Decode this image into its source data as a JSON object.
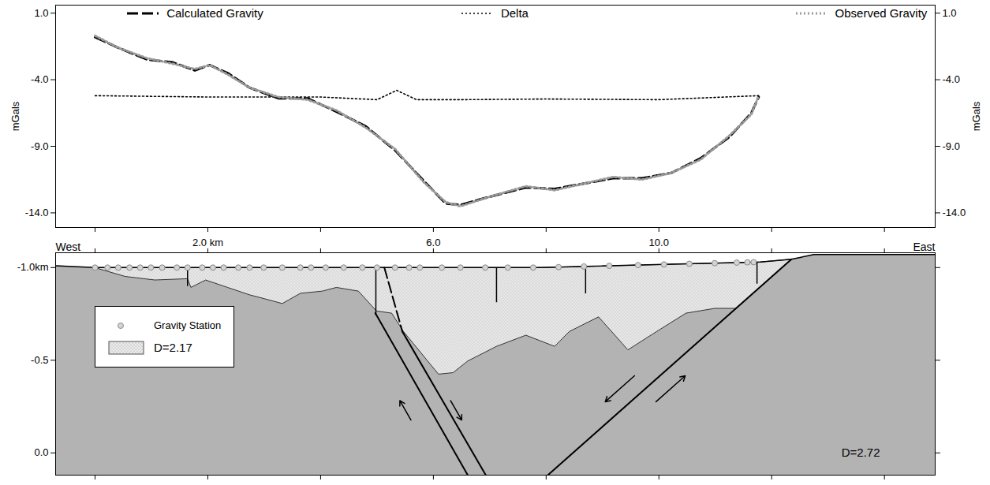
{
  "chart_data": [
    {
      "type": "line",
      "ylabel": "mGals",
      "xlim": [
        -0.7,
        14.9
      ],
      "ylim": [
        -15.1,
        1.6
      ],
      "xticks": [
        0,
        2,
        4,
        6,
        8,
        10,
        12,
        14
      ],
      "yticks": [
        {
          "value": 1,
          "label": "1.0"
        },
        {
          "value": -4,
          "label": "-4.0"
        },
        {
          "value": -9,
          "label": "-9.0"
        },
        {
          "value": -14,
          "label": "-14.0"
        }
      ],
      "tick_labels": "y",
      "legend": "top",
      "series": [
        {
          "name": "Calculated Gravity",
          "color": "#000000",
          "line_style": "dashed",
          "x": [
            0,
            0.41,
            0.93,
            1.38,
            1.77,
            2.03,
            2.35,
            2.74,
            3.25,
            3.77,
            4.28,
            4.8,
            5.32,
            5.83,
            6.22,
            6.48,
            6.99,
            7.64,
            8.15,
            8.67,
            9.19,
            9.7,
            10.22,
            10.74,
            11.25,
            11.64,
            11.77
          ],
          "values": [
            -0.8,
            -1.6,
            -2.5,
            -2.7,
            -3.3,
            -2.9,
            -3.5,
            -4.6,
            -5.4,
            -5.4,
            -6.4,
            -7.5,
            -9.3,
            -11.6,
            -13.3,
            -13.4,
            -12.8,
            -12.1,
            -12.2,
            -11.8,
            -11.4,
            -11.4,
            -11.0,
            -9.9,
            -8.3,
            -6.5,
            -5.3
          ]
        },
        {
          "name": "Delta",
          "color": "#000000",
          "line_style": "dotted",
          "x": [
            0,
            2,
            4,
            5.0,
            5.35,
            5.7,
            6.5,
            8,
            10,
            11.77
          ],
          "values": [
            -5.2,
            -5.3,
            -5.3,
            -5.5,
            -4.8,
            -5.5,
            -5.5,
            -5.45,
            -5.5,
            -5.2
          ]
        },
        {
          "name": "Observed Gravity",
          "color": "#9a9a9a",
          "line_style": "dotted",
          "x": [
            0,
            0.41,
            0.93,
            1.38,
            1.77,
            2.03,
            2.35,
            2.74,
            3.25,
            3.77,
            4.28,
            4.8,
            5.32,
            5.83,
            6.22,
            6.48,
            6.99,
            7.64,
            8.15,
            8.67,
            9.19,
            9.7,
            10.22,
            10.74,
            11.25,
            11.64,
            11.77
          ],
          "values": [
            -0.7,
            -1.6,
            -2.4,
            -2.8,
            -3.2,
            -2.9,
            -3.6,
            -4.6,
            -5.3,
            -5.5,
            -6.3,
            -7.6,
            -9.2,
            -11.7,
            -13.2,
            -13.5,
            -12.8,
            -12.0,
            -12.3,
            -11.8,
            -11.3,
            -11.5,
            -11.0,
            -10.0,
            -8.2,
            -6.6,
            -5.2
          ]
        }
      ]
    },
    {
      "type": "cross_section",
      "xlim": [
        -0.7,
        14.9
      ],
      "ylim": [
        -1.08,
        0.12
      ],
      "xticks": [
        {
          "value": 0,
          "label": null
        },
        {
          "value": 2,
          "label": "2.0 km"
        },
        {
          "value": 4,
          "label": null
        },
        {
          "value": 6,
          "label": "6.0"
        },
        {
          "value": 8,
          "label": null
        },
        {
          "value": 10,
          "label": "10.0"
        },
        {
          "value": 12,
          "label": null
        },
        {
          "value": 14,
          "label": null
        }
      ],
      "yticks": [
        {
          "value": -1.0,
          "label": "-1.0km"
        },
        {
          "value": -0.5,
          "label": "-0.5"
        },
        {
          "value": 0,
          "label": "0.0"
        }
      ],
      "legend": "left",
      "direction_labels": [
        "West",
        "East"
      ],
      "surface": [
        [
          -0.7,
          -1.01
        ],
        [
          0,
          -1.0
        ],
        [
          5.3,
          -1.0
        ],
        [
          7.9,
          -1.0
        ],
        [
          10.5,
          -1.02
        ],
        [
          11.8,
          -1.03
        ],
        [
          12.35,
          -1.045
        ],
        [
          12.75,
          -1.07
        ],
        [
          14.9,
          -1.07
        ]
      ],
      "units": [
        {
          "label": "D=2.72",
          "color": "#b3b3b3"
        },
        {
          "label": "D=2.17",
          "color": "#ececec",
          "polygon": [
            [
              0,
              -1.0
            ],
            [
              5.3,
              -1.0
            ],
            [
              7.9,
              -1.0
            ],
            [
              10.5,
              -1.02
            ],
            [
              11.8,
              -1.03
            ],
            [
              12.35,
              -1.045
            ],
            [
              11.37,
              -0.78
            ],
            [
              10.99,
              -0.78
            ],
            [
              10.48,
              -0.754
            ],
            [
              9.96,
              -0.655
            ],
            [
              9.45,
              -0.556
            ],
            [
              8.93,
              -0.734
            ],
            [
              8.41,
              -0.655
            ],
            [
              8.15,
              -0.575
            ],
            [
              7.64,
              -0.635
            ],
            [
              7.12,
              -0.575
            ],
            [
              6.61,
              -0.496
            ],
            [
              6.35,
              -0.433
            ],
            [
              6.09,
              -0.425
            ],
            [
              5.47,
              -0.655
            ],
            [
              5.26,
              -0.754
            ],
            [
              4.99,
              -0.766
            ],
            [
              4.67,
              -0.873
            ],
            [
              4.28,
              -0.893
            ],
            [
              4.03,
              -0.873
            ],
            [
              3.64,
              -0.861
            ],
            [
              3.32,
              -0.806
            ],
            [
              2.99,
              -0.833
            ],
            [
              2.74,
              -0.853
            ],
            [
              2.35,
              -0.893
            ],
            [
              1.96,
              -0.933
            ],
            [
              1.7,
              -0.893
            ],
            [
              1.64,
              -0.94
            ],
            [
              1.06,
              -0.933
            ],
            [
              0.54,
              -0.952
            ]
          ]
        }
      ],
      "faults": [
        {
          "line_style": "solid",
          "points": [
            [
              4.97,
              -0.754
            ],
            [
              6.61,
              0.12
            ]
          ],
          "west_side": "up"
        },
        {
          "line_style": "dashed",
          "points": [
            [
              5.13,
              -1.0
            ],
            [
              5.45,
              -0.655
            ]
          ]
        },
        {
          "line_style": "solid",
          "points": [
            [
              5.45,
              -0.655
            ],
            [
              6.93,
              0.12
            ]
          ]
        },
        {
          "line_style": "solid",
          "points": [
            [
              12.35,
              -1.045
            ],
            [
              8.03,
              0.12
            ]
          ],
          "west_side": "down"
        }
      ],
      "vertical_lines": [
        [
          1.64,
          -0.9
        ],
        [
          4.98,
          -0.742
        ],
        [
          7.12,
          -0.813
        ],
        [
          8.7,
          -0.861
        ],
        [
          11.74,
          -0.913
        ]
      ],
      "stations": {
        "name": "Gravity Station",
        "x": [
          0,
          0.22,
          0.41,
          0.61,
          0.8,
          0.99,
          1.19,
          1.45,
          1.64,
          1.9,
          2.09,
          2.28,
          2.54,
          2.74,
          2.99,
          3.32,
          3.64,
          3.83,
          4.09,
          4.41,
          4.74,
          5.0,
          5.32,
          5.57,
          5.76,
          6.15,
          6.48,
          6.92,
          7.32,
          7.77,
          8.22,
          8.67,
          9.12,
          9.63,
          10.09,
          10.54,
          10.99,
          11.38,
          11.57,
          11.68
        ]
      }
    }
  ]
}
